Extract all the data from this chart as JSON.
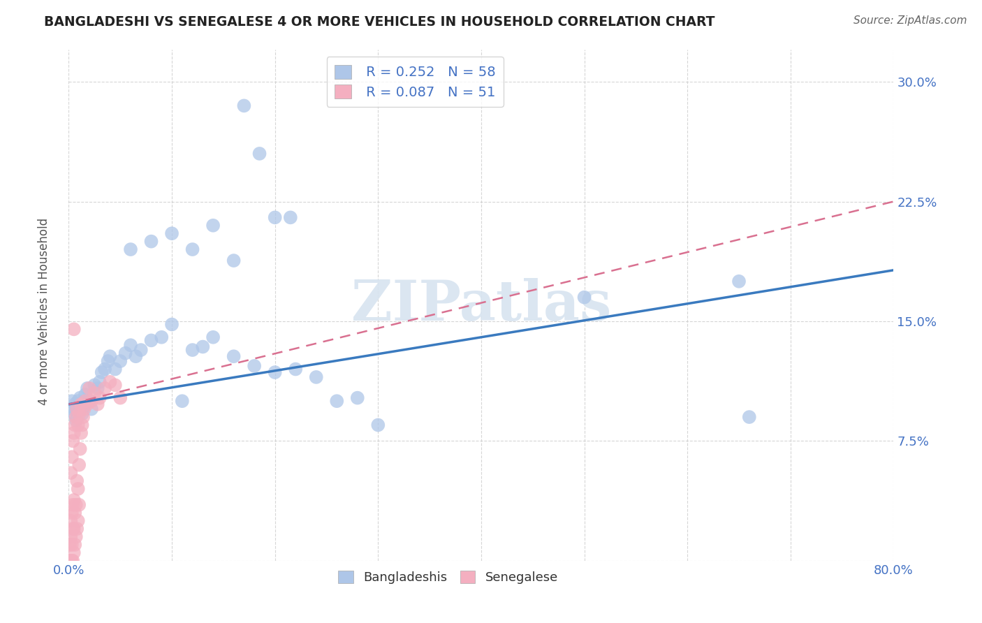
{
  "title": "BANGLADESHI VS SENEGALESE 4 OR MORE VEHICLES IN HOUSEHOLD CORRELATION CHART",
  "source": "Source: ZipAtlas.com",
  "ylabel": "4 or more Vehicles in Household",
  "xlabel_bangladeshi": "Bangladeshis",
  "xlabel_senegalese": "Senegalese",
  "xlim": [
    0.0,
    0.8
  ],
  "ylim": [
    0.0,
    0.32
  ],
  "R_bangladeshi": 0.252,
  "N_bangladeshi": 58,
  "R_senegalese": 0.087,
  "N_senegalese": 51,
  "color_bangladeshi": "#aec6e8",
  "color_senegalese": "#f4afc0",
  "color_line_bangladeshi": "#3a7abf",
  "color_line_senegalese": "#d97090",
  "watermark_color": "#d8e4f0",
  "background_color": "#ffffff",
  "grid_color": "#cccccc",
  "tick_color": "#4472c4",
  "title_color": "#222222",
  "source_color": "#666666",
  "bangladeshi_x": [
    0.003,
    0.004,
    0.005,
    0.006,
    0.007,
    0.008,
    0.009,
    0.01,
    0.011,
    0.012,
    0.013,
    0.014,
    0.015,
    0.016,
    0.018,
    0.02,
    0.022,
    0.025,
    0.028,
    0.03,
    0.032,
    0.035,
    0.038,
    0.04,
    0.045,
    0.05,
    0.055,
    0.06,
    0.065,
    0.07,
    0.08,
    0.09,
    0.1,
    0.11,
    0.12,
    0.13,
    0.14,
    0.16,
    0.18,
    0.2,
    0.22,
    0.24,
    0.26,
    0.28,
    0.3,
    0.06,
    0.08,
    0.1,
    0.12,
    0.14,
    0.16,
    0.5,
    0.65,
    0.66,
    0.17,
    0.185,
    0.2,
    0.215
  ],
  "bangladeshi_y": [
    0.1,
    0.095,
    0.092,
    0.098,
    0.088,
    0.094,
    0.1,
    0.096,
    0.102,
    0.098,
    0.092,
    0.096,
    0.1,
    0.104,
    0.108,
    0.1,
    0.095,
    0.11,
    0.108,
    0.112,
    0.118,
    0.12,
    0.125,
    0.128,
    0.12,
    0.125,
    0.13,
    0.135,
    0.128,
    0.132,
    0.138,
    0.14,
    0.148,
    0.1,
    0.132,
    0.134,
    0.14,
    0.128,
    0.122,
    0.118,
    0.12,
    0.115,
    0.1,
    0.102,
    0.085,
    0.195,
    0.2,
    0.205,
    0.195,
    0.21,
    0.188,
    0.165,
    0.175,
    0.09,
    0.285,
    0.255,
    0.215,
    0.215
  ],
  "senegalese_x": [
    0.001,
    0.001,
    0.002,
    0.002,
    0.002,
    0.003,
    0.003,
    0.003,
    0.004,
    0.004,
    0.004,
    0.005,
    0.005,
    0.005,
    0.006,
    0.006,
    0.007,
    0.007,
    0.008,
    0.008,
    0.009,
    0.009,
    0.01,
    0.01,
    0.011,
    0.012,
    0.013,
    0.014,
    0.015,
    0.016,
    0.018,
    0.02,
    0.022,
    0.025,
    0.028,
    0.03,
    0.035,
    0.04,
    0.045,
    0.05,
    0.002,
    0.003,
    0.004,
    0.005,
    0.006,
    0.007,
    0.008,
    0.009,
    0.01,
    0.012,
    0.005
  ],
  "senegalese_y": [
    0.0,
    0.01,
    0.0,
    0.015,
    0.025,
    0.0,
    0.01,
    0.03,
    0.0,
    0.02,
    0.035,
    0.005,
    0.02,
    0.038,
    0.01,
    0.03,
    0.015,
    0.035,
    0.02,
    0.05,
    0.025,
    0.045,
    0.035,
    0.06,
    0.07,
    0.08,
    0.085,
    0.09,
    0.095,
    0.1,
    0.098,
    0.108,
    0.1,
    0.105,
    0.098,
    0.102,
    0.108,
    0.112,
    0.11,
    0.102,
    0.055,
    0.065,
    0.075,
    0.08,
    0.085,
    0.09,
    0.095,
    0.085,
    0.092,
    0.098,
    0.145
  ],
  "line_b_x0": 0.0,
  "line_b_y0": 0.098,
  "line_b_x1": 0.8,
  "line_b_y1": 0.182,
  "line_s_x0": 0.0,
  "line_s_y0": 0.098,
  "line_s_x1": 0.8,
  "line_s_y1": 0.225
}
